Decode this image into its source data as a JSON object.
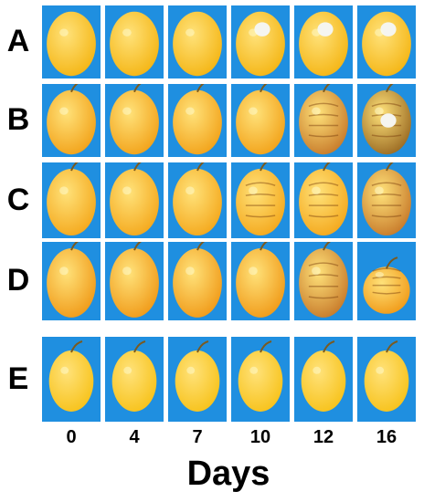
{
  "rows": [
    {
      "label": "A",
      "fruit_color": "#f4b514",
      "shape": "round-bell",
      "stages": [
        "fresh",
        "fresh",
        "fresh",
        "white-spot",
        "white-spot",
        "white-spot"
      ]
    },
    {
      "label": "B",
      "fruit_color": "#f2a219",
      "shape": "oval",
      "stages": [
        "fresh",
        "fresh",
        "fresh",
        "fresh",
        "browning",
        "rotten"
      ]
    },
    {
      "label": "C",
      "fruit_color": "#f4a81c",
      "shape": "oval",
      "stages": [
        "fresh",
        "fresh",
        "fresh",
        "wrinkled",
        "wrinkled",
        "browning"
      ]
    },
    {
      "label": "D",
      "fruit_color": "#f09a18",
      "shape": "oval",
      "stages": [
        "fresh",
        "fresh",
        "fresh",
        "fresh",
        "wrinkled-brown",
        "collapsed"
      ]
    },
    {
      "label": "E",
      "fruit_color": "#f7c21a",
      "shape": "lemon",
      "stages": [
        "fresh",
        "fresh",
        "fresh",
        "fresh",
        "fresh",
        "fresh"
      ]
    }
  ],
  "days": [
    "0",
    "4",
    "7",
    "10",
    "12",
    "16"
  ],
  "x_axis_title": "Days",
  "colors": {
    "background_blue": "#1f8fe0",
    "page_background": "#ffffff",
    "brown_decay": "#a8601c",
    "white_mold": "#f5f5f0"
  }
}
